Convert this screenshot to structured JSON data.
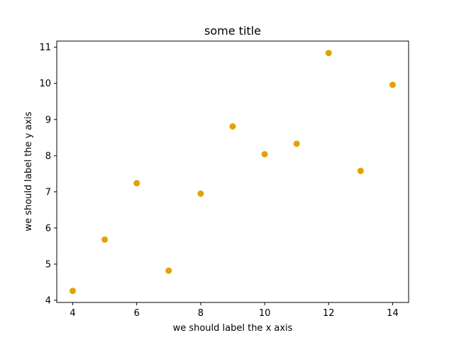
{
  "chart_data": {
    "type": "scatter",
    "title": "some title",
    "xlabel": "we should label the x axis",
    "ylabel": "we should label the y axis",
    "xlim": [
      3.5,
      14.5
    ],
    "ylim": [
      3.94,
      11.17
    ],
    "xticks": [
      4,
      6,
      8,
      10,
      12,
      14
    ],
    "yticks": [
      4,
      5,
      6,
      7,
      8,
      9,
      10,
      11
    ],
    "grid": false,
    "marker_color": "#e5a100",
    "x": [
      4,
      5,
      6,
      7,
      8,
      9,
      10,
      11,
      12,
      13,
      14
    ],
    "y": [
      4.26,
      5.68,
      7.24,
      4.82,
      6.95,
      8.81,
      8.04,
      8.33,
      10.84,
      7.58,
      9.96
    ]
  }
}
